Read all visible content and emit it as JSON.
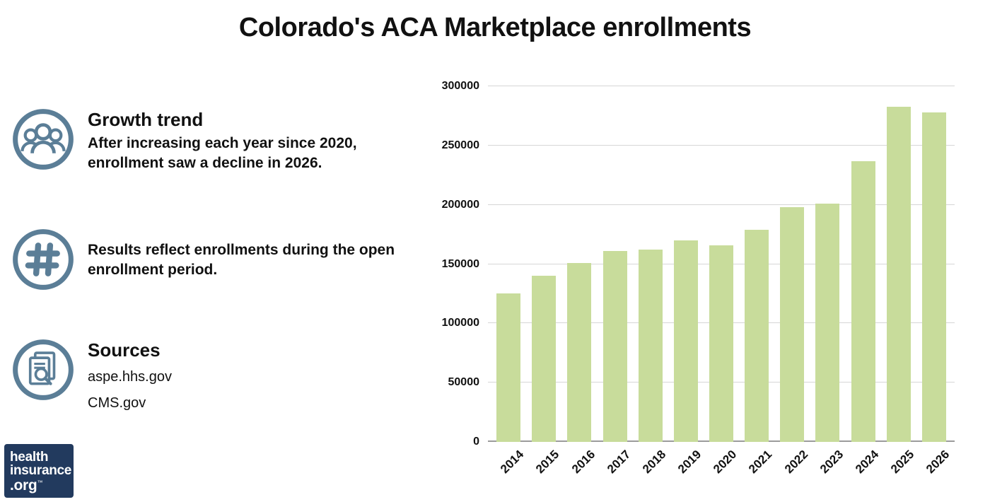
{
  "page": {
    "title": "Colorado's ACA Marketplace enrollments"
  },
  "info": {
    "growth": {
      "heading": "Growth trend",
      "body": "After increasing each year since 2020, enrollment saw a decline in 2026."
    },
    "note": {
      "body": "Results reflect enrollments during the open enrollment period."
    },
    "sources": {
      "heading": "Sources",
      "items": [
        "aspe.hhs.gov",
        "CMS.gov"
      ]
    }
  },
  "logo": {
    "line1": "health",
    "line2": "insurance",
    "line3": ".org",
    "tm": "™"
  },
  "colors": {
    "bar": "#c8dc9b",
    "icon": "#5b7e97",
    "logo_bg": "#223a5e",
    "grid": "#d6d6d6"
  },
  "chart_data": {
    "type": "bar",
    "title": "Colorado's ACA Marketplace enrollments",
    "categories": [
      "2014",
      "2015",
      "2016",
      "2017",
      "2018",
      "2019",
      "2020",
      "2021",
      "2022",
      "2023",
      "2024",
      "2025",
      "2026"
    ],
    "values": [
      125000,
      140000,
      151000,
      161000,
      162000,
      170000,
      166000,
      179000,
      198000,
      201000,
      237000,
      283000,
      278000
    ],
    "xlabel": "",
    "ylabel": "",
    "ylim": [
      0,
      300000
    ],
    "yticks": [
      0,
      50000,
      100000,
      150000,
      200000,
      250000,
      300000
    ],
    "grid": true,
    "legend": "none",
    "bar_color": "#c8dc9b"
  }
}
